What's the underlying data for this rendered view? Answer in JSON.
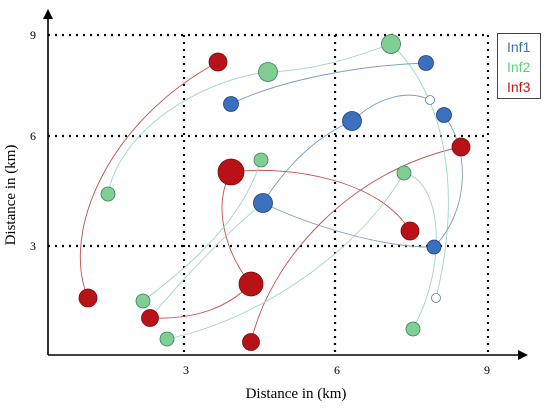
{
  "diagram": {
    "xlabel": "Distance in (km)",
    "ylabel": "Distance in (km)",
    "xticks": [
      "3",
      "6",
      "9"
    ],
    "yticks": [
      "3",
      "6",
      "9"
    ],
    "legend": [
      {
        "label": "Inf1",
        "color": "#3b6fbf"
      },
      {
        "label": "Inf2",
        "color": "#5fcf75"
      },
      {
        "label": "Inf3",
        "color": "#c0171b"
      }
    ],
    "colors": {
      "inf1": "#3b6fbf",
      "inf2": "#7fcf94",
      "inf3": "#b81218",
      "link_inf1": "#7d9dbd",
      "link_inf2": "#9fd6c8",
      "link_inf3": "#c0504d",
      "grid": "#000000"
    }
  }
}
